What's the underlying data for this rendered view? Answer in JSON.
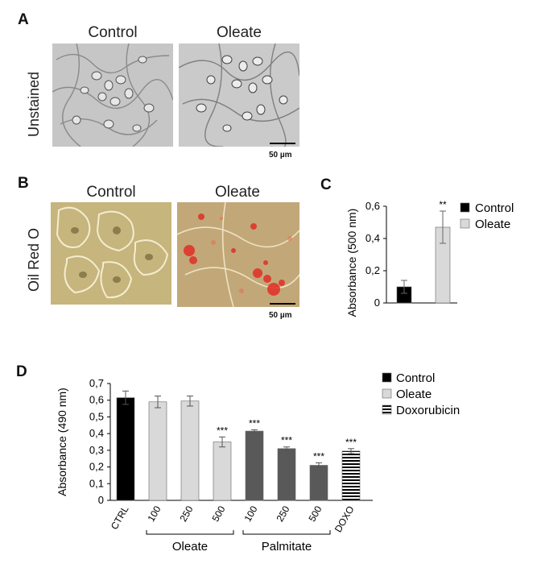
{
  "panels": {
    "A": {
      "letter": "A",
      "row_label": "Unstained",
      "columns": [
        "Control",
        "Oleate"
      ],
      "scale_bar": "50 µm"
    },
    "B": {
      "letter": "B",
      "row_label": "Oil Red O",
      "columns": [
        "Control",
        "Oleate"
      ],
      "scale_bar": "50 µm"
    }
  },
  "colors": {
    "control": "#000000",
    "oleate": "#d9d9d9",
    "palmitate": "#595959",
    "unstained_bg": "#c8c8c8",
    "stain_bg": "#c9b47a",
    "lipid": "#e0352b"
  },
  "chart_data": [
    {
      "panel": "C",
      "letter": "C",
      "type": "bar",
      "categories": [
        "Control",
        "Oleate"
      ],
      "values": [
        0.1,
        0.47
      ],
      "errors": [
        0.04,
        0.1
      ],
      "significance": [
        "",
        "**"
      ],
      "bar_colors": [
        "#000000",
        "#d9d9d9"
      ],
      "ylabel": "Absorbance (500 nm)",
      "ylim": [
        0,
        0.6
      ],
      "yticks": [
        0,
        0.2,
        0.4,
        0.6
      ],
      "ytick_labels": [
        "0",
        "0,2",
        "0,4",
        "0,6"
      ],
      "legend": [
        {
          "label": "Control",
          "color": "#000000"
        },
        {
          "label": "Oleate",
          "color": "#d9d9d9"
        }
      ],
      "legend_position": "right",
      "grid": false
    },
    {
      "panel": "D",
      "letter": "D",
      "type": "bar",
      "categories": [
        "CTRL",
        "100",
        "250",
        "500",
        "100",
        "250",
        "500",
        "DOXO"
      ],
      "values": [
        0.615,
        0.59,
        0.595,
        0.35,
        0.415,
        0.31,
        0.21,
        0.295
      ],
      "errors": [
        0.04,
        0.035,
        0.03,
        0.03,
        0.008,
        0.01,
        0.015,
        0.015
      ],
      "significance": [
        "",
        "",
        "",
        "***",
        "***",
        "***",
        "***",
        "***"
      ],
      "bar_fills": [
        "control",
        "oleate",
        "oleate",
        "oleate",
        "palmitate",
        "palmitate",
        "palmitate",
        "stripes"
      ],
      "groups": [
        {
          "label": "Oleate",
          "from": 1,
          "to": 3
        },
        {
          "label": "Palmitate",
          "from": 4,
          "to": 6
        }
      ],
      "ylabel": "Absorbance (490 nm)",
      "ylim": [
        0,
        0.7
      ],
      "yticks": [
        0,
        0.1,
        0.2,
        0.3,
        0.4,
        0.5,
        0.6,
        0.7
      ],
      "ytick_labels": [
        "0",
        "0,1",
        "0,2",
        "0,3",
        "0,4",
        "0,5",
        "0,6",
        "0,7"
      ],
      "legend": [
        {
          "label": "Control",
          "fill": "control"
        },
        {
          "label": "Oleate",
          "fill": "oleate"
        },
        {
          "label": "Doxorubicin",
          "fill": "stripes"
        }
      ],
      "legend_position": "top-right",
      "grid": false
    }
  ]
}
